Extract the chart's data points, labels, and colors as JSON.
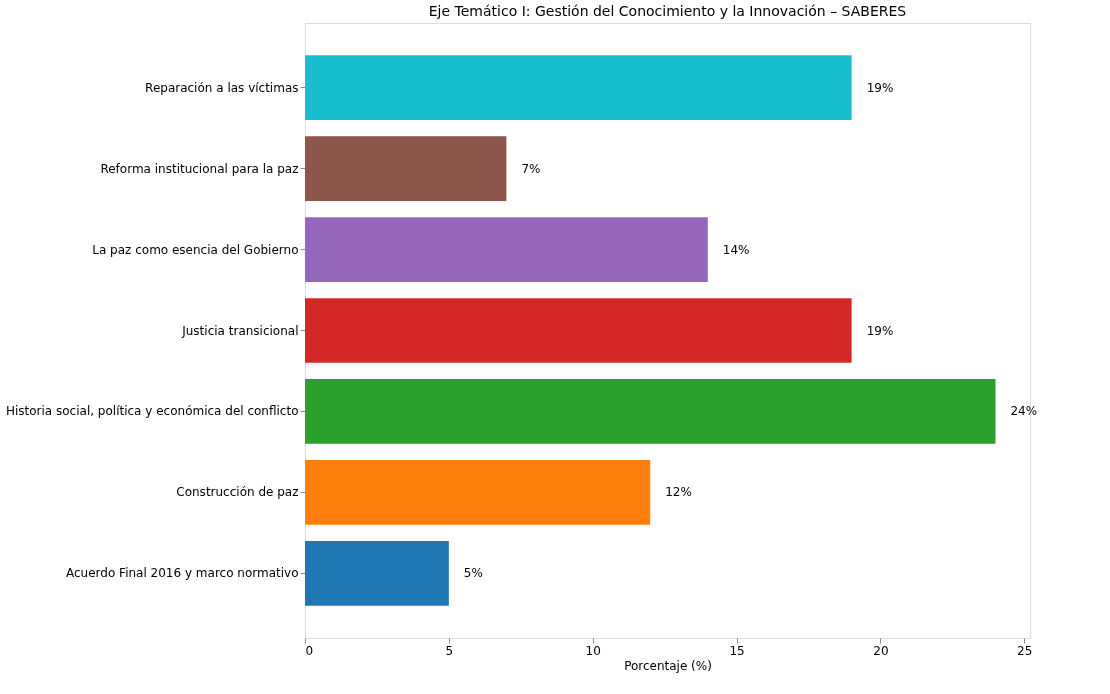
{
  "chart_data": {
    "type": "bar",
    "orientation": "horizontal",
    "title": "Eje Temático I: Gestión del Conocimiento y la Innovación – SABERES",
    "xlabel": "Porcentaje (%)",
    "categories": [
      "Reparación a las víctimas",
      "Reforma institucional para la paz",
      "La paz como esencia del Gobierno",
      "Justicia transicional",
      "Historia social, política y económica del conflicto",
      "Construcción de paz",
      "Acuerdo Final 2016 y marco normativo"
    ],
    "values": [
      19,
      7,
      14,
      19,
      24,
      12,
      5
    ],
    "colors": [
      "#17becf",
      "#8c564b",
      "#9467bd",
      "#d62728",
      "#2ca02c",
      "#ff7f0e",
      "#1f77b4"
    ],
    "value_labels": [
      "19%",
      "7%",
      "14%",
      "19%",
      "24%",
      "12%",
      "5%"
    ],
    "xlim": [
      0,
      25.2
    ],
    "xticks": [
      0,
      5,
      10,
      15,
      20,
      25
    ],
    "grid": false
  }
}
